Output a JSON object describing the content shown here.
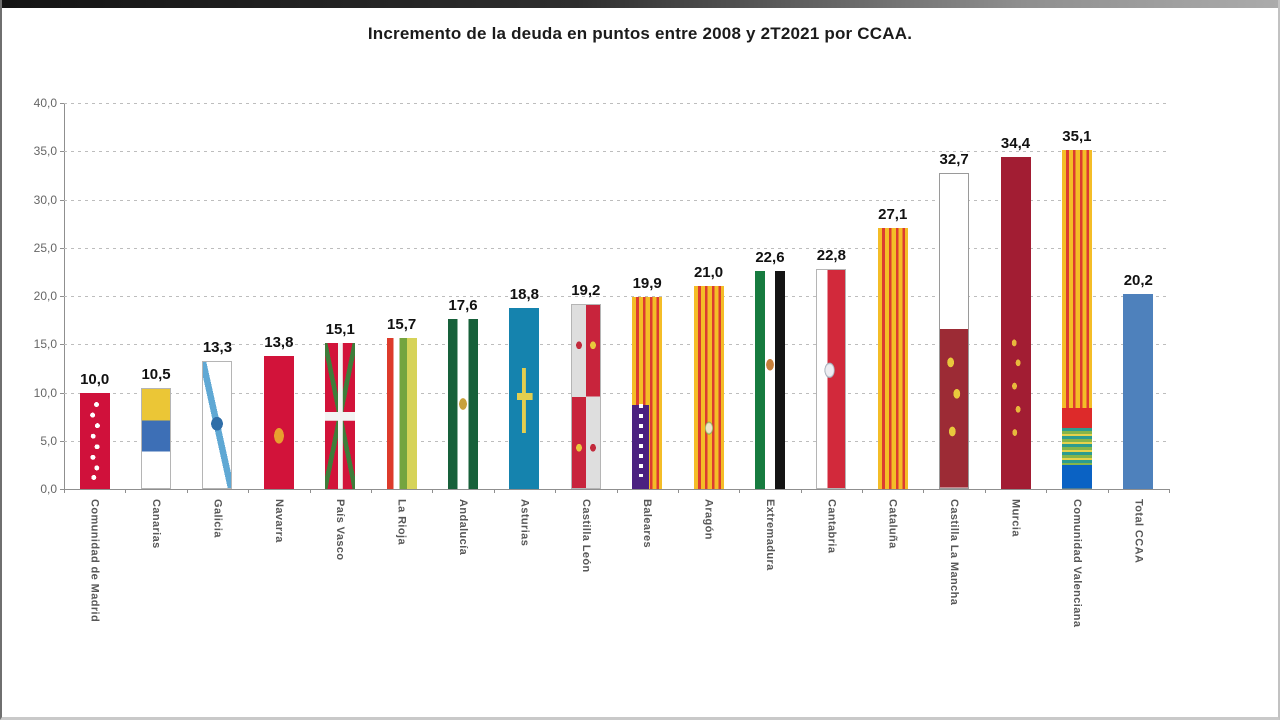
{
  "window": {
    "top_strip_colors": [
      "#141414",
      "#ababab"
    ],
    "background": "#ffffff"
  },
  "title": "Incremento de la deuda en puntos entre 2008 y 2T2021 por CCAA.",
  "chart_data": {
    "type": "bar",
    "title": "Incremento de la deuda en puntos entre 2008 y 2T2021 por CCAA.",
    "xlabel": "",
    "ylabel": "",
    "ylim": [
      0,
      40
    ],
    "grid": "horizontal dashed gridlines every 5 units",
    "legend_position": "none",
    "value_format": "spanish decimal comma, one decimal",
    "yticks": [
      {
        "value": 0,
        "label": "0,0"
      },
      {
        "value": 5,
        "label": "5,0"
      },
      {
        "value": 10,
        "label": "10,0"
      },
      {
        "value": 15,
        "label": "15,0"
      },
      {
        "value": 20,
        "label": "20,0"
      },
      {
        "value": 25,
        "label": "25,0"
      },
      {
        "value": 30,
        "label": "30,0"
      },
      {
        "value": 35,
        "label": "35,0"
      },
      {
        "value": 40,
        "label": "40,0"
      }
    ],
    "bars": [
      {
        "name": "Comunidad de Madrid",
        "value": 10.0,
        "label": "10,0",
        "flag": "madrid"
      },
      {
        "name": "Canarias",
        "value": 10.5,
        "label": "10,5",
        "flag": "canarias"
      },
      {
        "name": "Galicia",
        "value": 13.3,
        "label": "13,3",
        "flag": "galicia"
      },
      {
        "name": "Navarra",
        "value": 13.8,
        "label": "13,8",
        "flag": "navarra"
      },
      {
        "name": "País Vasco",
        "value": 15.1,
        "label": "15,1",
        "flag": "paisvasco"
      },
      {
        "name": "La Rioja",
        "value": 15.7,
        "label": "15,7",
        "flag": "larioja"
      },
      {
        "name": "Andalucía",
        "value": 17.6,
        "label": "17,6",
        "flag": "andalucia"
      },
      {
        "name": "Asturias",
        "value": 18.8,
        "label": "18,8",
        "flag": "asturias"
      },
      {
        "name": "Castilla León",
        "value": 19.2,
        "label": "19,2",
        "flag": "castillaleon"
      },
      {
        "name": "Baleares",
        "value": 19.9,
        "label": "19,9",
        "flag": "baleares"
      },
      {
        "name": "Aragón",
        "value": 21.0,
        "label": "21,0",
        "flag": "aragon"
      },
      {
        "name": "Extremadura",
        "value": 22.6,
        "label": "22,6",
        "flag": "extremadura"
      },
      {
        "name": "Cantabria",
        "value": 22.8,
        "label": "22,8",
        "flag": "cantabria"
      },
      {
        "name": "Cataluña",
        "value": 27.1,
        "label": "27,1",
        "flag": "cataluna"
      },
      {
        "name": "Castilla La Mancha",
        "value": 32.7,
        "label": "32,7",
        "flag": "castillalamancha"
      },
      {
        "name": "Murcia",
        "value": 34.4,
        "label": "34,4",
        "flag": "murcia"
      },
      {
        "name": "Comunidad Valenciana",
        "value": 35.1,
        "label": "35,1",
        "flag": "valenciana"
      },
      {
        "name": "Total CCAA",
        "value": 20.2,
        "label": "20,2",
        "flag": "total"
      }
    ],
    "bar_style_note": "each regional bar is patterned like the flag of its autonomous community; Total CCAA bar is solid steel blue",
    "colors": {
      "total_bar": "#4E81BC",
      "senyera_yellow": "#F4BD27",
      "senyera_red": "#DC3B30",
      "murcia_crimson": "#A21D33",
      "axis": "#8f8f8f",
      "gridline": "#bdbdbd",
      "tick_label": "#666666",
      "category_label": "#575757",
      "value_label": "#111111"
    }
  }
}
